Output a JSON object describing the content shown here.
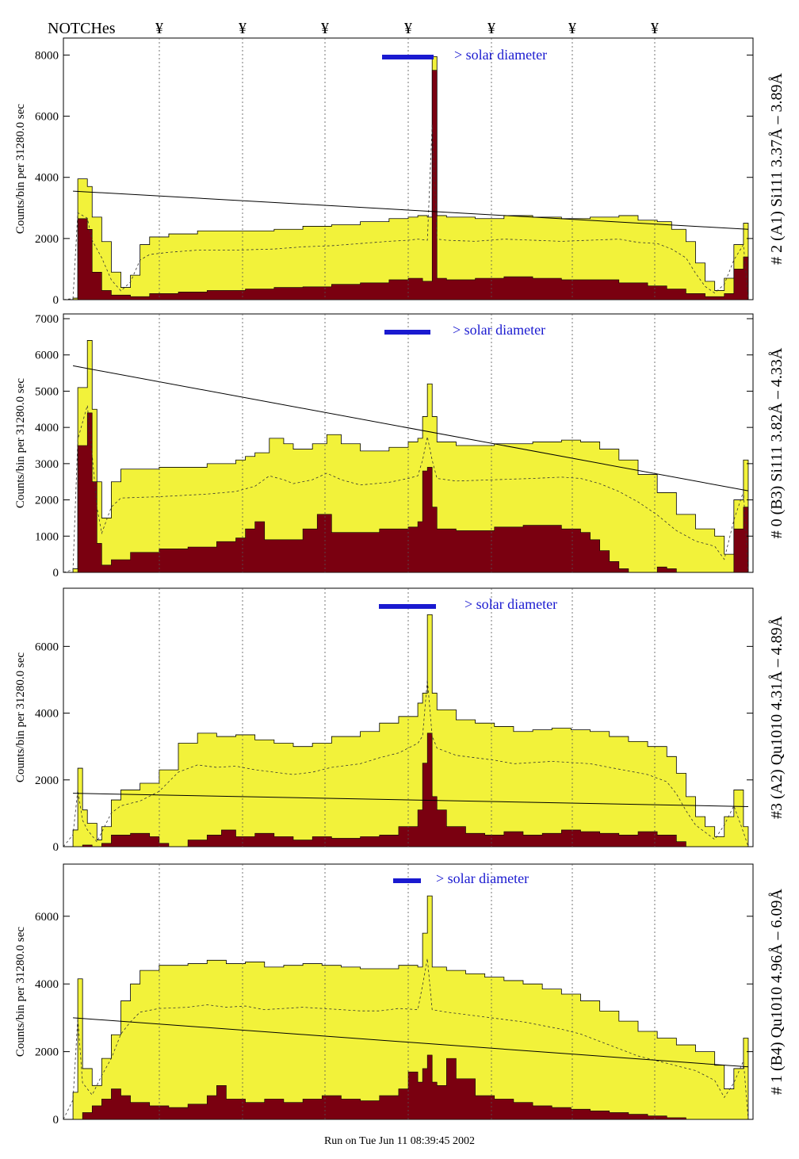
{
  "header": {
    "notches_label": "NOTCHes",
    "notch_marker": "¥"
  },
  "colors": {
    "envelope": "#f2f23a",
    "fill": "#7a0010",
    "solar_bar": "#1a1ad0",
    "line_label": "#1a1ad0"
  },
  "footer": {
    "run_text": "Run on Tue Jun 11 08:39:45 2002"
  },
  "chart_data": [
    {
      "type": "area",
      "side_label": "# 2 (A1) Si111 3.37Å – 3.89Å",
      "ylabel": "Counts/bin per 31280.0 sec",
      "solar_label": "> solar diameter",
      "ylim": [
        0,
        8400
      ],
      "yticks": [
        0,
        2000,
        4000,
        6000,
        8000
      ],
      "envelope": [
        [
          0,
          0
        ],
        [
          2,
          50
        ],
        [
          3,
          3950
        ],
        [
          5,
          3700
        ],
        [
          6,
          2700
        ],
        [
          8,
          1900
        ],
        [
          10,
          900
        ],
        [
          12,
          400
        ],
        [
          14,
          800
        ],
        [
          16,
          1800
        ],
        [
          18,
          2050
        ],
        [
          22,
          2150
        ],
        [
          28,
          2250
        ],
        [
          36,
          2250
        ],
        [
          44,
          2300
        ],
        [
          50,
          2400
        ],
        [
          56,
          2450
        ],
        [
          62,
          2550
        ],
        [
          68,
          2650
        ],
        [
          72,
          2700
        ],
        [
          74,
          2750
        ],
        [
          76,
          2700
        ],
        [
          77,
          7950
        ],
        [
          78,
          2750
        ],
        [
          80,
          2700
        ],
        [
          86,
          2650
        ],
        [
          92,
          2750
        ],
        [
          98,
          2700
        ],
        [
          104,
          2650
        ],
        [
          110,
          2700
        ],
        [
          116,
          2750
        ],
        [
          120,
          2600
        ],
        [
          124,
          2550
        ],
        [
          127,
          2300
        ],
        [
          130,
          1900
        ],
        [
          132,
          1200
        ],
        [
          134,
          600
        ],
        [
          136,
          300
        ],
        [
          138,
          700
        ],
        [
          140,
          1800
        ],
        [
          142,
          2500
        ],
        [
          143,
          0
        ],
        [
          144,
          0
        ]
      ],
      "fill": [
        [
          0,
          0
        ],
        [
          2,
          0
        ],
        [
          3,
          2650
        ],
        [
          5,
          2300
        ],
        [
          6,
          900
        ],
        [
          8,
          300
        ],
        [
          10,
          150
        ],
        [
          14,
          100
        ],
        [
          18,
          200
        ],
        [
          24,
          250
        ],
        [
          30,
          300
        ],
        [
          38,
          350
        ],
        [
          44,
          400
        ],
        [
          50,
          420
        ],
        [
          56,
          500
        ],
        [
          62,
          550
        ],
        [
          68,
          650
        ],
        [
          72,
          700
        ],
        [
          75,
          600
        ],
        [
          77,
          7500
        ],
        [
          78,
          700
        ],
        [
          80,
          650
        ],
        [
          86,
          700
        ],
        [
          92,
          750
        ],
        [
          98,
          700
        ],
        [
          104,
          650
        ],
        [
          110,
          650
        ],
        [
          116,
          550
        ],
        [
          122,
          450
        ],
        [
          126,
          350
        ],
        [
          130,
          200
        ],
        [
          134,
          100
        ],
        [
          138,
          200
        ],
        [
          140,
          1000
        ],
        [
          142,
          1400
        ],
        [
          143,
          0
        ],
        [
          144,
          0
        ]
      ],
      "trend": [
        [
          2,
          3550
        ],
        [
          143,
          2300
        ]
      ]
    },
    {
      "type": "area",
      "side_label": "# 0 (B3) Si111 3.82Å – 4.33Å",
      "ylabel": "Counts/bin per 31280.0 sec",
      "solar_label": "> solar diameter",
      "ylim": [
        0,
        7000
      ],
      "yticks": [
        0,
        1000,
        2000,
        3000,
        4000,
        5000,
        6000,
        7000
      ],
      "envelope": [
        [
          0,
          0
        ],
        [
          2,
          100
        ],
        [
          3,
          5100
        ],
        [
          5,
          6400
        ],
        [
          6,
          4500
        ],
        [
          7,
          2500
        ],
        [
          8,
          1500
        ],
        [
          10,
          2500
        ],
        [
          12,
          2850
        ],
        [
          20,
          2900
        ],
        [
          30,
          3000
        ],
        [
          36,
          3100
        ],
        [
          38,
          3200
        ],
        [
          40,
          3300
        ],
        [
          43,
          3700
        ],
        [
          46,
          3550
        ],
        [
          48,
          3400
        ],
        [
          52,
          3550
        ],
        [
          55,
          3800
        ],
        [
          58,
          3550
        ],
        [
          62,
          3350
        ],
        [
          68,
          3450
        ],
        [
          72,
          3600
        ],
        [
          74,
          3700
        ],
        [
          75,
          4300
        ],
        [
          76,
          5200
        ],
        [
          77,
          4300
        ],
        [
          78,
          3600
        ],
        [
          82,
          3500
        ],
        [
          90,
          3550
        ],
        [
          98,
          3600
        ],
        [
          104,
          3650
        ],
        [
          108,
          3600
        ],
        [
          112,
          3400
        ],
        [
          116,
          3100
        ],
        [
          120,
          2700
        ],
        [
          124,
          2200
        ],
        [
          128,
          1600
        ],
        [
          132,
          1200
        ],
        [
          136,
          1000
        ],
        [
          138,
          500
        ],
        [
          140,
          2000
        ],
        [
          142,
          3100
        ],
        [
          143,
          0
        ],
        [
          144,
          0
        ]
      ],
      "fill": [
        [
          0,
          0
        ],
        [
          2,
          0
        ],
        [
          3,
          3500
        ],
        [
          5,
          4400
        ],
        [
          6,
          2500
        ],
        [
          7,
          800
        ],
        [
          8,
          200
        ],
        [
          10,
          350
        ],
        [
          14,
          550
        ],
        [
          20,
          650
        ],
        [
          26,
          700
        ],
        [
          32,
          850
        ],
        [
          36,
          950
        ],
        [
          38,
          1200
        ],
        [
          40,
          1400
        ],
        [
          42,
          900
        ],
        [
          46,
          900
        ],
        [
          50,
          1200
        ],
        [
          53,
          1600
        ],
        [
          56,
          1100
        ],
        [
          60,
          1100
        ],
        [
          66,
          1200
        ],
        [
          72,
          1250
        ],
        [
          74,
          1400
        ],
        [
          75,
          2800
        ],
        [
          76,
          2900
        ],
        [
          77,
          1800
        ],
        [
          78,
          1200
        ],
        [
          82,
          1150
        ],
        [
          90,
          1250
        ],
        [
          96,
          1300
        ],
        [
          100,
          1300
        ],
        [
          104,
          1200
        ],
        [
          108,
          1100
        ],
        [
          110,
          900
        ],
        [
          112,
          600
        ],
        [
          114,
          300
        ],
        [
          116,
          100
        ],
        [
          118,
          0
        ],
        [
          122,
          0
        ],
        [
          124,
          150
        ],
        [
          126,
          100
        ],
        [
          128,
          0
        ],
        [
          138,
          0
        ],
        [
          140,
          1200
        ],
        [
          142,
          1800
        ],
        [
          143,
          0
        ],
        [
          144,
          0
        ]
      ],
      "trend": [
        [
          2,
          5700
        ],
        [
          143,
          2250
        ]
      ]
    },
    {
      "type": "area",
      "side_label": "#3 (A2) Qu1010 4.31Å – 4.89Å",
      "ylabel": "Counts/bin per 31280.0 sec",
      "solar_label": "> solar diameter",
      "ylim": [
        0,
        7600
      ],
      "yticks": [
        0,
        2000,
        4000,
        6000
      ],
      "envelope": [
        [
          0,
          0
        ],
        [
          2,
          500
        ],
        [
          3,
          2350
        ],
        [
          4,
          1100
        ],
        [
          5,
          700
        ],
        [
          7,
          200
        ],
        [
          8,
          600
        ],
        [
          10,
          1400
        ],
        [
          12,
          1700
        ],
        [
          16,
          1900
        ],
        [
          20,
          2300
        ],
        [
          24,
          3100
        ],
        [
          28,
          3400
        ],
        [
          32,
          3300
        ],
        [
          36,
          3350
        ],
        [
          40,
          3200
        ],
        [
          44,
          3100
        ],
        [
          48,
          3000
        ],
        [
          52,
          3100
        ],
        [
          56,
          3300
        ],
        [
          62,
          3450
        ],
        [
          66,
          3700
        ],
        [
          70,
          3900
        ],
        [
          74,
          4300
        ],
        [
          75,
          4600
        ],
        [
          76,
          6950
        ],
        [
          77,
          4600
        ],
        [
          78,
          4100
        ],
        [
          82,
          3800
        ],
        [
          86,
          3700
        ],
        [
          90,
          3600
        ],
        [
          94,
          3450
        ],
        [
          98,
          3500
        ],
        [
          102,
          3550
        ],
        [
          106,
          3500
        ],
        [
          110,
          3450
        ],
        [
          114,
          3300
        ],
        [
          118,
          3150
        ],
        [
          122,
          3000
        ],
        [
          126,
          2700
        ],
        [
          128,
          2200
        ],
        [
          130,
          1500
        ],
        [
          132,
          900
        ],
        [
          134,
          600
        ],
        [
          136,
          300
        ],
        [
          138,
          900
        ],
        [
          140,
          1700
        ],
        [
          142,
          600
        ],
        [
          143,
          0
        ],
        [
          144,
          0
        ]
      ],
      "fill": [
        [
          0,
          0
        ],
        [
          3,
          0
        ],
        [
          4,
          50
        ],
        [
          6,
          0
        ],
        [
          8,
          100
        ],
        [
          10,
          350
        ],
        [
          14,
          400
        ],
        [
          18,
          300
        ],
        [
          20,
          100
        ],
        [
          22,
          0
        ],
        [
          26,
          200
        ],
        [
          30,
          350
        ],
        [
          33,
          500
        ],
        [
          36,
          300
        ],
        [
          40,
          400
        ],
        [
          44,
          300
        ],
        [
          48,
          200
        ],
        [
          52,
          300
        ],
        [
          56,
          250
        ],
        [
          62,
          300
        ],
        [
          66,
          350
        ],
        [
          70,
          600
        ],
        [
          74,
          1100
        ],
        [
          75,
          2500
        ],
        [
          76,
          3400
        ],
        [
          77,
          1500
        ],
        [
          78,
          1100
        ],
        [
          80,
          600
        ],
        [
          84,
          400
        ],
        [
          88,
          350
        ],
        [
          92,
          450
        ],
        [
          96,
          350
        ],
        [
          100,
          400
        ],
        [
          104,
          500
        ],
        [
          108,
          450
        ],
        [
          112,
          400
        ],
        [
          116,
          350
        ],
        [
          120,
          450
        ],
        [
          124,
          350
        ],
        [
          128,
          150
        ],
        [
          130,
          0
        ],
        [
          144,
          0
        ]
      ],
      "trend": [
        [
          2,
          1600
        ],
        [
          143,
          1200
        ]
      ]
    },
    {
      "type": "area",
      "side_label": "# 1 (B4) Qu1010 4.96Å – 6.09Å",
      "ylabel": "Counts/bin per 31280.0 sec",
      "solar_label": "> solar diameter",
      "ylim": [
        0,
        7400
      ],
      "yticks": [
        0,
        2000,
        4000,
        6000
      ],
      "envelope": [
        [
          0,
          0
        ],
        [
          2,
          800
        ],
        [
          3,
          4150
        ],
        [
          4,
          1500
        ],
        [
          6,
          1000
        ],
        [
          8,
          1800
        ],
        [
          10,
          2500
        ],
        [
          12,
          3500
        ],
        [
          14,
          4000
        ],
        [
          16,
          4400
        ],
        [
          20,
          4550
        ],
        [
          26,
          4600
        ],
        [
          30,
          4700
        ],
        [
          34,
          4600
        ],
        [
          38,
          4650
        ],
        [
          42,
          4500
        ],
        [
          46,
          4550
        ],
        [
          50,
          4600
        ],
        [
          54,
          4550
        ],
        [
          58,
          4500
        ],
        [
          62,
          4450
        ],
        [
          66,
          4450
        ],
        [
          70,
          4550
        ],
        [
          74,
          4500
        ],
        [
          75,
          5500
        ],
        [
          76,
          6600
        ],
        [
          77,
          4500
        ],
        [
          80,
          4400
        ],
        [
          84,
          4300
        ],
        [
          88,
          4200
        ],
        [
          92,
          4100
        ],
        [
          96,
          4000
        ],
        [
          100,
          3850
        ],
        [
          104,
          3700
        ],
        [
          108,
          3500
        ],
        [
          112,
          3200
        ],
        [
          116,
          2900
        ],
        [
          120,
          2600
        ],
        [
          124,
          2400
        ],
        [
          128,
          2200
        ],
        [
          132,
          2000
        ],
        [
          136,
          1600
        ],
        [
          138,
          900
        ],
        [
          140,
          1500
        ],
        [
          142,
          2400
        ],
        [
          143,
          0
        ],
        [
          144,
          0
        ]
      ],
      "fill": [
        [
          0,
          0
        ],
        [
          3,
          0
        ],
        [
          4,
          200
        ],
        [
          6,
          400
        ],
        [
          8,
          600
        ],
        [
          10,
          900
        ],
        [
          12,
          700
        ],
        [
          14,
          500
        ],
        [
          18,
          400
        ],
        [
          22,
          350
        ],
        [
          26,
          450
        ],
        [
          30,
          700
        ],
        [
          32,
          1000
        ],
        [
          34,
          600
        ],
        [
          38,
          500
        ],
        [
          42,
          600
        ],
        [
          46,
          500
        ],
        [
          50,
          600
        ],
        [
          54,
          700
        ],
        [
          58,
          600
        ],
        [
          62,
          550
        ],
        [
          66,
          700
        ],
        [
          70,
          900
        ],
        [
          72,
          1400
        ],
        [
          74,
          1100
        ],
        [
          75,
          1500
        ],
        [
          76,
          1900
        ],
        [
          77,
          1100
        ],
        [
          78,
          1000
        ],
        [
          80,
          1800
        ],
        [
          82,
          1200
        ],
        [
          86,
          700
        ],
        [
          90,
          600
        ],
        [
          94,
          500
        ],
        [
          98,
          400
        ],
        [
          102,
          350
        ],
        [
          106,
          300
        ],
        [
          110,
          250
        ],
        [
          114,
          200
        ],
        [
          118,
          150
        ],
        [
          122,
          100
        ],
        [
          126,
          50
        ],
        [
          130,
          0
        ],
        [
          144,
          0
        ]
      ],
      "trend": [
        [
          2,
          3000
        ],
        [
          143,
          1550
        ]
      ]
    }
  ]
}
